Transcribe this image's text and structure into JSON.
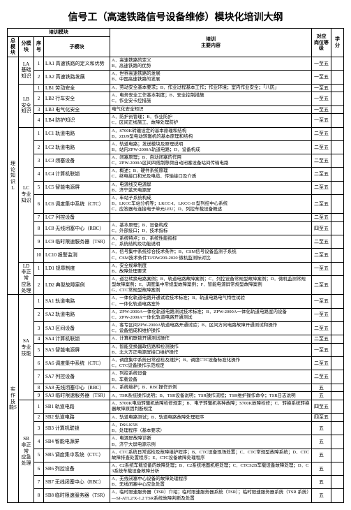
{
  "title": "信号工（高速铁路信号设备维修）模块化培训大纲",
  "header": {
    "group_train": "培训模块",
    "zong": "总模块",
    "fen": "分模块",
    "xu": "序号",
    "zi": "子模块",
    "content": "培训\n主要内容",
    "gang": "对应\n岗位等级",
    "xuefen": "学分"
  },
  "sections": [
    {
      "zong": "理论知识L",
      "groups": [
        {
          "fen": "LA\n基础\n知识",
          "rows": [
            {
              "xu": "1",
              "zi": "LA1 高速铁路的定义和优势",
              "c": "A．高速铁路的定义\nB．高速铁路的优势",
              "g": "一至五",
              "x": ""
            },
            {
              "xu": "2",
              "zi": "LA2 高速铁路发展",
              "c": "A．世界高速铁路的发展\nB．中国高速铁路的发展",
              "g": "一至五",
              "x": ""
            }
          ]
        },
        {
          "fen": "LB\n安全\n知识",
          "rows": [
            {
              "xu": "1",
              "zi": "LB1 劳动安全",
              "c": "A．劳动安全基本要求；B．作业过程基本工作；作业环境；室内作业安全；「八防」",
              "g": "一至五",
              "x": ""
            },
            {
              "xu": "2",
              "zi": "LB2 行车安全",
              "c": "A．电务安全工作基本制度；B．安全控制措施\nC．作业安卡控措施",
              "g": "一至五",
              "x": ""
            },
            {
              "xu": "3",
              "zi": "LB3 电气化安全",
              "c": "电气化安全知识",
              "g": "一至五",
              "x": ""
            },
            {
              "xu": "4",
              "zi": "LB4 防护知识",
              "c": "A．防护员管理；B．作业防护\nC．区间正线施工、故障处理防护",
              "g": "一至五",
              "x": ""
            }
          ]
        },
        {
          "fen": "LC\n专业\n知识",
          "rows": [
            {
              "xu": "1",
              "zi": "LC1 轨道电路",
              "c": "A．S700K转辙设定的基本原理和结构\nB．ZDJ9型电动转辙机的基本原理和结构",
              "g": "二至五",
              "x": ""
            },
            {
              "xu": "2",
              "zi": "LC2 轨道电路",
              "c": "A．轨道电路；发送模块及原理说明\nB．站内ZPW-2000A轨道电路；D．设备构成",
              "g": "二至五",
              "x": ""
            },
            {
              "xu": "3",
              "zi": "LC3 闭塞设备",
              "c": "A．闭塞原理；B．自动闭塞的作用\nC．ZPW-2000A区间四线制移频自动闭塞设备站间传输电路",
              "g": "二至五",
              "x": ""
            },
            {
              "xu": "4",
              "zi": "LC4 计算机联锁",
              "c": "A．概述；B．硬件系统原理\nC．继电接口和光及电缆、传输接口及介质",
              "g": "二至五",
              "x": ""
            },
            {
              "xu": "5",
              "zi": "LC5 智能电源屏",
              "c": "A．电源线交电源屏\nB．济宁蓝天电源屏",
              "g": "二至五",
              "x": ""
            },
            {
              "xu": "6",
              "zi": "LC6 调度集中系统（CTC）",
              "c": "A．车站子系统构成\nB．LKCC车站分机等；LKCC-I、LKCC-II 型列控中心系统\nC．应答器与连接电子单元LEU；D．列控车载设备概述",
              "g": "二至五",
              "x": ""
            },
            {
              "xu": "7",
              "zi": "LC7 列控设备",
              "c": "",
              "g": "二至五",
              "x": ""
            },
            {
              "xu": "8",
              "zi": "LC8 无线闭塞中心（RBC）",
              "c": "A．基本原理；B．设备构成\nC．外部接口；D．技术指标",
              "g": "四至五",
              "x": ""
            },
            {
              "xu": "9",
              "zi": "LC9 临时限速服务器（TSR）",
              "c": "A．系统特点；B．系统性能指标\nC．系统结构及功能说明",
              "g": "二至五",
              "x": ""
            },
            {
              "xu": "10",
              "zi": "LC10 报警监测",
              "c": "A．信号集中系统综合技术条件；B．CSM信号设备监测子系统\nC．CSM技术条件TJ/DW209-2020 微机监测标对比",
              "g": "二至五",
              "x": ""
            }
          ]
        },
        {
          "fen": "LD\n非正常\n应急处理",
          "rows": [
            {
              "xu": "1",
              "zi": "LD1 规章制度",
              "c": "A．安全规章制度\nB．故障处理要求",
              "g": "一至五",
              "x": ""
            },
            {
              "xu": "2",
              "zi": "LD2 典型故障案例",
              "c": "A．道岔转换电路案例；B．轨道电路故障案例；C．列控设备常规型故障案例；D．微机监测常规型故障案例；E．调度集中常规型故障案例；F．智能电源屏常规型故障案例\nG．CTC常规型故障案例",
              "g": "二至五",
              "x": ""
            }
          ]
        }
      ]
    },
    {
      "zong": "实作技能S",
      "groups": [
        {
          "fen": "SA\n专业\n技能",
          "rows": [
            {
              "xu": "1",
              "zi": "SA1 轨道电路",
              "c": "A．一体化轨道电路开通试验技术标准；B．轨道电路电气特性试验\nC．一体化轨道电路室外",
              "g": "一至五",
              "x": ""
            },
            {
              "xu": "2",
              "zi": "SA2 轨道电路",
              "c": "A．ZPW-2000A一体化轨道电路测试技术标准；B．ZPW-2000A一体化轨道电路室内设备\nC．ZPW-2000A一体化轨道电路开通测试",
              "g": "一至五",
              "x": ""
            },
            {
              "xu": "3",
              "zi": "SA3 区间设备",
              "c": "A．客专区间ZPW-2000A轨道电路开通试验；B．区间方向电路故障开通测试和操作\nC．设备组成和维护操作",
              "g": "二至五",
              "x": ""
            },
            {
              "xu": "4",
              "zi": "SA4 计算机联锁",
              "c": "A．计算机联锁开通测试操作",
              "g": "二至五",
              "x": ""
            },
            {
              "xu": "5",
              "zi": "SA5 智能电源屏",
              "c": "A．智能变换器政信路和检测操作\nB．北大方正电源屏接口维护操作",
              "g": "一至五",
              "x": ""
            },
            {
              "xu": "6",
              "zi": "SA6 调度集中系统（CTC）",
              "c": "A．调度集中系统日常巡检及维护；B．调度CTC设备标准化操作\nC．CTC设备操作示范规定",
              "g": "二至五",
              "x": ""
            },
            {
              "xu": "7",
              "zi": "SA7 列控设备",
              "c": "A．列控系统设备\nB．车载设备",
              "g": "二至五",
              "x": ""
            },
            {
              "xu": "8",
              "zi": "SA8 无线闭塞中心（RBC）",
              "c": "A．系统维护；B．RBC操作示例",
              "g": "五",
              "x": ""
            },
            {
              "xu": "9",
              "zi": "SA9 临时限速服务器（TSR）",
              "c": "A．TSR系统操作说明；B．TSR设备说明；TSR操作流程；TSR维护操作命令；TSR日志说明",
              "g": "五",
              "x": ""
            }
          ]
        },
        {
          "fen": "SB\n非正常\n应急处理",
          "rows": [
            {
              "xu": "1",
              "zi": "SB1 轨道电路",
              "c": "A．S700K电动转辙机故障检修规定；B．电子转辙机各种故障；S700K故障检修；C．转换系统转换器故障原因判断规定",
              "g": "四至五",
              "x": ""
            },
            {
              "xu": "2",
              "zi": "SB2 轨道电路",
              "c": "A．轨道电路测试；B．轨道电路故障处理程序",
              "g": "四至五",
              "x": ""
            },
            {
              "xu": "3",
              "zi": "SB3 计算机联锁",
              "c": "A．DS6-K5B\nB．处理程序（基本要求）",
              "g": "五",
              "x": ""
            },
            {
              "xu": "4",
              "zi": "SB4 智能电源屏",
              "c": "A．电源屏故障诊断\nB．济宁大屏电源示例",
              "g": "五",
              "x": ""
            },
            {
              "xu": "5",
              "zi": "SB5 调度集中系统（CTC）",
              "c": "A．CTC系统日常巡检及故障维护程序；B．CTC设备现场处置；C．CTC常规型故障系统；D．CTC故障排查处置程序；E．CTC设备故障处理程序",
              "g": "五",
              "x": ""
            },
            {
              "xu": "6",
              "zi": "SB6 列控设备",
              "c": "A．C2系统车载设备的故障处理；B．C2系统地面机柜处理；C．CTCS2B车载设备故障处理；D．C3系统车载设备故障分析",
              "g": "五",
              "x": ""
            },
            {
              "xu": "7",
              "zi": "SB7 无线闭塞中心（RBC）",
              "c": "A．无线闭塞中心设备的故障处理程序\nB．无线闭塞中心应急处置",
              "g": "五",
              "x": ""
            },
            {
              "xu": "8",
              "zi": "SB8 临时限速服务器（TSR）",
              "c": "A．临时限速服务器（TSR）介绍；临时限速服务器系统（TSR）；临时限速服务器系统（TSR 系统）—SJ-ATL2/X-1.2 TSR系统故障判断及处置",
              "g": "五",
              "x": ""
            }
          ]
        }
      ]
    }
  ]
}
